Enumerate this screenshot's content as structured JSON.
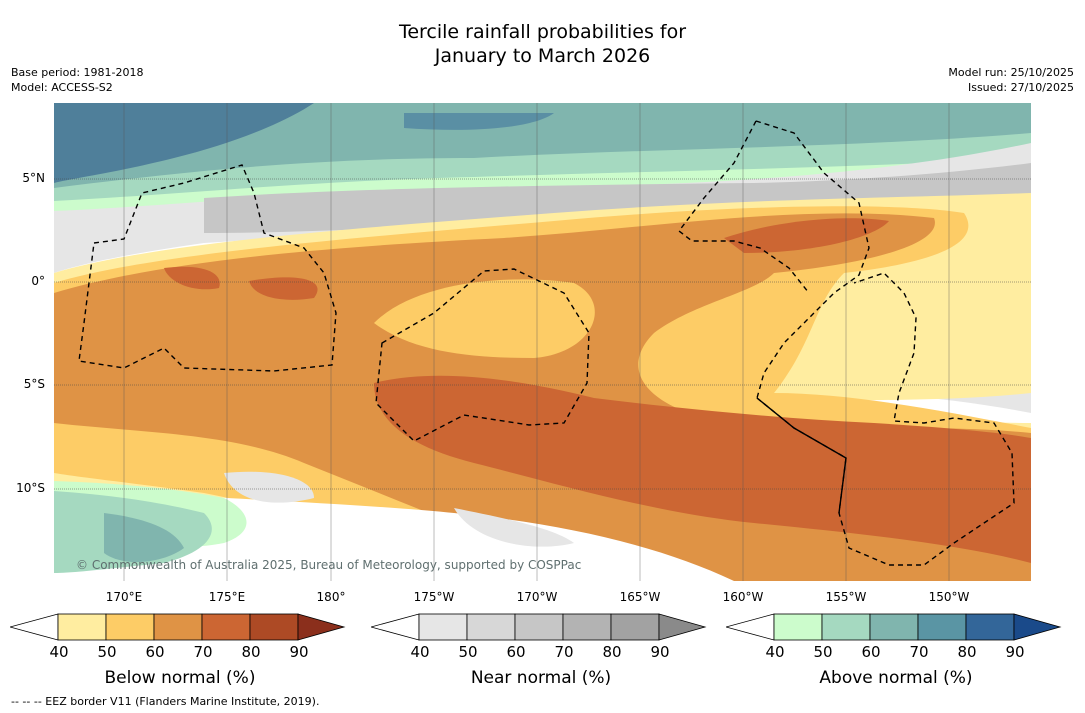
{
  "title": {
    "line1": "Tercile rainfall probabilities for",
    "line2": "January to March 2026"
  },
  "meta_left": {
    "base_period": "Base period: 1981-2018",
    "model": "Model: ACCESS-S2"
  },
  "meta_right": {
    "model_run": "Model run: 25/10/2025",
    "issued": "Issued: 27/10/2025"
  },
  "map": {
    "lat_labels": [
      "5°N",
      "0°",
      "5°S",
      "10°S"
    ],
    "lon_labels": [
      "170°E",
      "175°E",
      "180°",
      "175°W",
      "170°W",
      "165°W",
      "160°W",
      "155°W",
      "150°W"
    ],
    "extent": {
      "lon_min": 166.5,
      "lon_max": 213.7,
      "lat_min": -14.2,
      "lat_max": 8.9
    },
    "copyright": "© Commonwealth of Australia 2025, Bureau of Meteorology, supported by COSPPac"
  },
  "colorbars": [
    {
      "name": "below",
      "title": "Below normal (%)",
      "ticks": [
        "40",
        "50",
        "60",
        "70",
        "80",
        "90"
      ],
      "colors": [
        "#ffffff",
        "#ffeda0",
        "#fdcc66",
        "#df9345",
        "#cc6633",
        "#ad4a25",
        "#8b2f1c"
      ]
    },
    {
      "name": "near",
      "title": "Near normal (%)",
      "ticks": [
        "40",
        "50",
        "60",
        "70",
        "80",
        "90"
      ],
      "colors": [
        "#ffffff",
        "#e6e6e6",
        "#d7d7d7",
        "#c6c6c6",
        "#b3b3b3",
        "#a2a2a2",
        "#8a8a8a"
      ]
    },
    {
      "name": "above",
      "title": "Above normal (%)",
      "ticks": [
        "40",
        "50",
        "60",
        "70",
        "80",
        "90"
      ],
      "colors": [
        "#ffffff",
        "#ccfccc",
        "#a5d9c0",
        "#80b5ae",
        "#5a95a4",
        "#336699",
        "#1a4a8a"
      ]
    }
  ],
  "footer": "--  --  -- EEZ border V11 (Flanders Marine Institute, 2019)."
}
